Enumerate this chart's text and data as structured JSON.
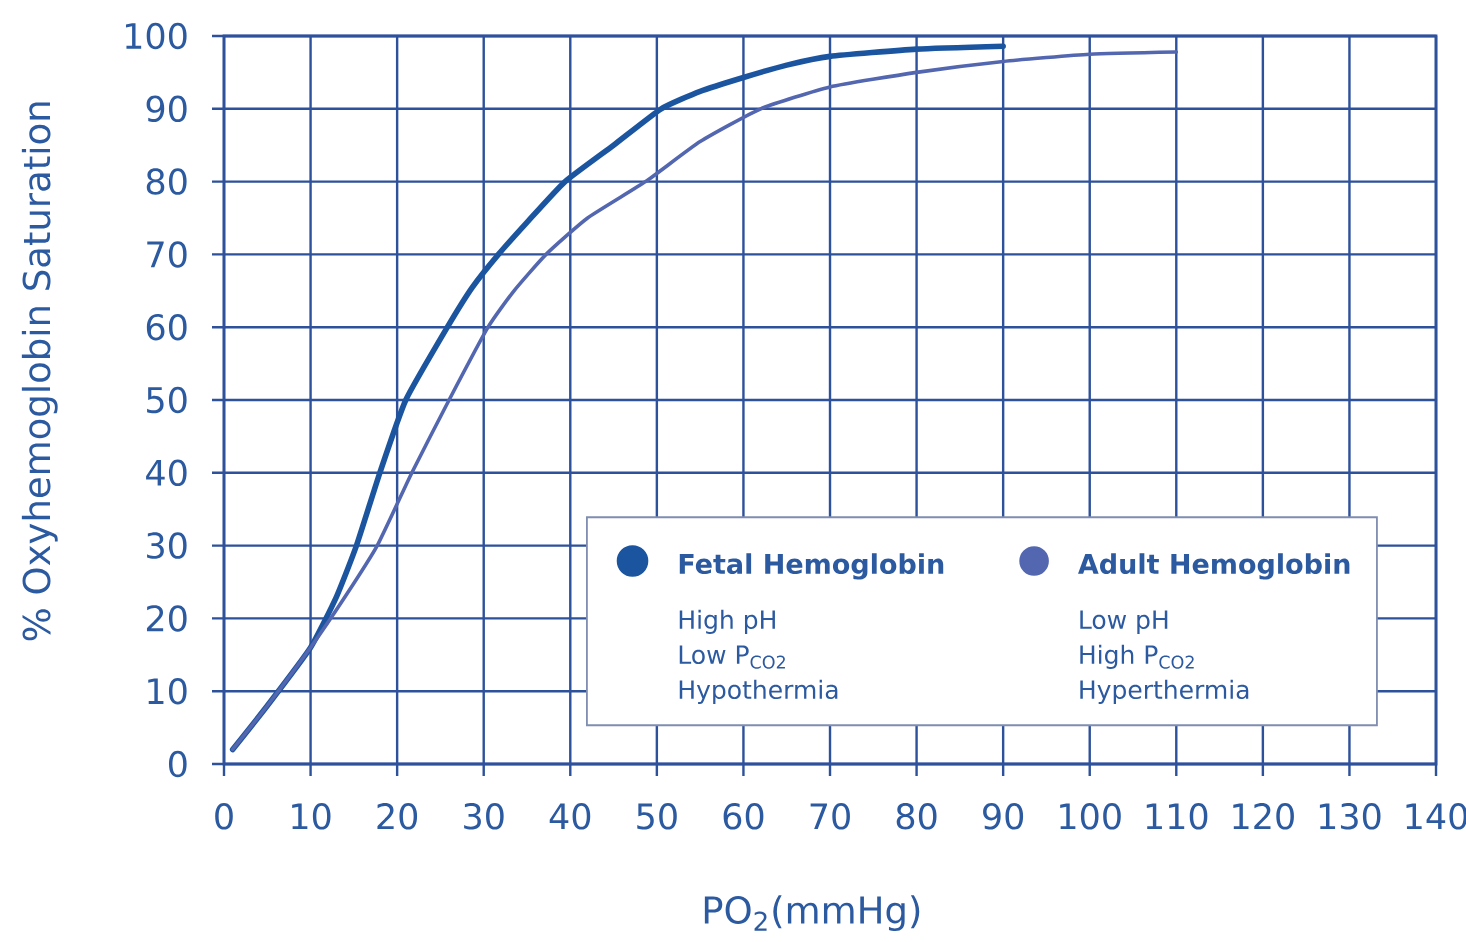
{
  "chart_data": {
    "type": "line",
    "xlabel": "PO$_{2}$(mmHg)",
    "ylabel": "% Oxyhemoglobin Saturation",
    "xlim": [
      0,
      140
    ],
    "ylim": [
      0,
      100
    ],
    "xticks": [
      0,
      10,
      20,
      30,
      40,
      50,
      60,
      70,
      80,
      90,
      100,
      110,
      120,
      130,
      140
    ],
    "yticks": [
      0,
      10,
      20,
      30,
      40,
      50,
      60,
      70,
      80,
      90,
      100
    ],
    "grid": true,
    "legend": "bottom right",
    "series": [
      {
        "name": "Fetal Hemoglobin",
        "color": "#1c559f",
        "x": [
          1,
          5,
          10,
          13,
          15.3,
          18,
          21,
          25.8,
          28.7,
          31.7,
          35,
          39.4,
          45,
          50.5,
          55,
          60,
          65,
          70,
          80,
          90
        ],
        "values": [
          2,
          8,
          16,
          23,
          30,
          40,
          50,
          60,
          65.5,
          70,
          74.4,
          80,
          85,
          90,
          92.4,
          94.3,
          96,
          97.2,
          98.2,
          98.6
        ]
      },
      {
        "name": "Adult Hemoglobin",
        "color": "#5366b0",
        "x": [
          1,
          5,
          10,
          14,
          17.7,
          21.7,
          26,
          30.5,
          33.5,
          37.2,
          42,
          48.7,
          55,
          62,
          70,
          80,
          90,
          100,
          110
        ],
        "values": [
          2,
          8,
          16,
          23,
          30,
          40,
          50,
          60,
          65,
          70,
          75,
          80,
          85.5,
          90,
          93,
          95,
          96.5,
          97.5,
          97.8
        ]
      }
    ],
    "annotations": [
      "High pH",
      "Low P$_{CO2}$",
      "Hypothermia",
      "Low pH",
      "High P$_{CO2}$",
      "Hyperthermia"
    ]
  }
}
